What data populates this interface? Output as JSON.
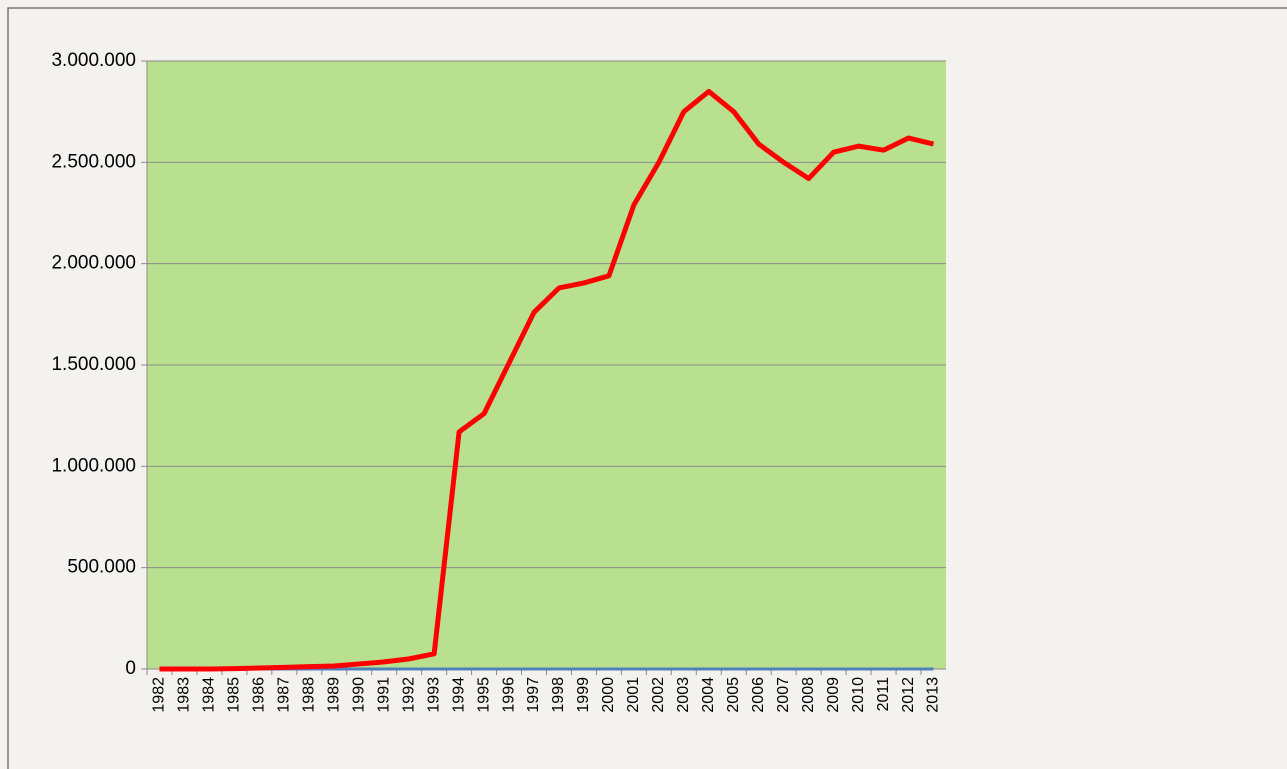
{
  "chart_data": {
    "type": "line",
    "categories": [
      "1982",
      "1983",
      "1984",
      "1985",
      "1986",
      "1987",
      "1988",
      "1989",
      "1990",
      "1991",
      "1992",
      "1993",
      "1994",
      "1995",
      "1996",
      "1997",
      "1998",
      "1999",
      "2000",
      "2001",
      "2002",
      "2003",
      "2004",
      "2005",
      "2006",
      "2007",
      "2008",
      "2009",
      "2010",
      "2011",
      "2012",
      "2013"
    ],
    "series": [
      {
        "color": "#4f81bd",
        "values": [
          0,
          0,
          0,
          0,
          0,
          0,
          0,
          0,
          0,
          0,
          0,
          0,
          0,
          0,
          0,
          0,
          0,
          0,
          0,
          0,
          0,
          0,
          0,
          0,
          0,
          0,
          0,
          0,
          0,
          0,
          0,
          0
        ]
      },
      {
        "color": "#ff0000",
        "values": [
          0,
          0,
          0,
          2000,
          5000,
          8000,
          12000,
          15000,
          25000,
          35000,
          50000,
          75000,
          1170000,
          1260000,
          1510000,
          1760000,
          1880000,
          1905000,
          1940000,
          2290000,
          2500000,
          2750000,
          2850000,
          2750000,
          2590000,
          2500000,
          2420000,
          2550000,
          2580000,
          2560000,
          2620000,
          2590000
        ]
      }
    ],
    "ylim": [
      0,
      3000000
    ],
    "yticks": [
      0,
      {
        "value": 500000,
        "label": "500.000"
      },
      {
        "value": 1000000,
        "label": "1.000.000"
      },
      {
        "value": 1500000,
        "label": "1.500.000"
      },
      {
        "value": 2000000,
        "label": "2.000.000"
      },
      {
        "value": 2500000,
        "label": "2.500.000"
      },
      {
        "value": 3000000,
        "label": "3.000.000"
      }
    ],
    "grid": true,
    "plot_background": "#b9e08f"
  }
}
